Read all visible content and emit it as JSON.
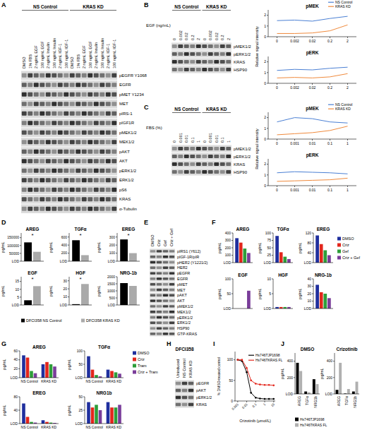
{
  "panel_labels": [
    "A",
    "B",
    "C",
    "D",
    "E",
    "F",
    "G",
    "H",
    "I",
    "J"
  ],
  "blots": [
    {
      "groups": [
        "NS Control",
        "KRAS KD"
      ],
      "lanes": [
        "DMSO",
        "1% FBS",
        "2 ng/mL EGF",
        "100 ng/mL EGF",
        "2 ng/mL Insulin",
        "100 ng/mL Insulin",
        "2 ng/mL IGF-1",
        "100 ng/mL IGF-1"
      ],
      "rows": [
        "pEGFR Y1068",
        "EGFR",
        "pMET Y1234",
        "MET",
        "pIRS-1",
        "pIGF1R",
        "pMEK1/2",
        "MEK1/2",
        "pAKT",
        "AKT",
        "pERK1/2",
        "ERK1/2",
        "pS6",
        "KRAS",
        "α-Tubulin"
      ]
    },
    {
      "groups": [
        "NS Control",
        "KRAS KD"
      ],
      "lane_title": "EGF (ng/mL)",
      "lanes": [
        "0",
        "0.002",
        "0.02",
        "0.2",
        "2"
      ],
      "rows": [
        "pMEK1/2",
        "pERK1/2",
        "KRAS",
        "HSP90"
      ]
    },
    {
      "groups": [
        "NS Control",
        "KRAS KD"
      ],
      "lane_title": "FBS (%)",
      "lanes": [
        "0",
        "0.001",
        "0.01",
        "0.1",
        "1"
      ],
      "rows": [
        "pMEK1/2",
        "pERK1/2",
        "KRAS",
        "HSP90"
      ]
    },
    {
      "lanes": [
        "DMSO",
        "Criz",
        "Gef",
        "Criz + Gef"
      ],
      "rows": [
        "pIRS1 (Y612)",
        "pIGF-1R/pIR",
        "pHER2 (Y1221/2)",
        "HER2",
        "pEGFR",
        "EGFR",
        "pMET",
        "MET",
        "pAKT",
        "AKT",
        "pMEK1/2",
        "MEK1/2",
        "pERK1/2",
        "ERK1/2",
        "HSP90",
        "GTP-KRAS"
      ]
    },
    {
      "title": "DFCI358",
      "lanes": [
        "Uninduced",
        "NS Control",
        "KRAS KD"
      ],
      "rows": [
        "pEGFR",
        "pAKT",
        "pERK1/2",
        "KRAS"
      ]
    }
  ],
  "chart_data": [
    {
      "type": "line",
      "title": "pMEK",
      "ylabel": "Relative signal intensity",
      "categories": [
        "0",
        "0.002",
        "0.02",
        "0.2",
        "2"
      ],
      "series": [
        {
          "name": "NS Control",
          "color": "#4a7fd4",
          "values": [
            1.5,
            1.55,
            1.45,
            1.7,
            1.9
          ]
        },
        {
          "name": "KRAS KD",
          "color": "#f08a3c",
          "values": [
            0.3,
            0.3,
            0.35,
            0.55,
            1.1
          ]
        }
      ],
      "ylim": [
        0,
        2.5
      ],
      "yticks": [
        0,
        1,
        2
      ],
      "legend": "top-right"
    },
    {
      "type": "line",
      "title": "pERK",
      "categories": [
        "0",
        "0.002",
        "0.02",
        "0.2",
        "2"
      ],
      "series": [
        {
          "color": "#4a7fd4",
          "values": [
            1.2,
            1.3,
            1.25,
            1.4,
            1.5
          ]
        },
        {
          "color": "#f08a3c",
          "values": [
            0.5,
            0.55,
            0.5,
            0.6,
            0.9
          ]
        }
      ],
      "ylim": [
        0,
        2.5
      ],
      "yticks": [
        0,
        1,
        2
      ]
    },
    {
      "type": "line",
      "title": "pMEK",
      "ylabel": "Relative signal intensity",
      "categories": [
        "0",
        "0.001",
        "0.01",
        "0.1",
        "1"
      ],
      "series": [
        {
          "name": "NS Control",
          "color": "#4a7fd4",
          "values": [
            1.6,
            2.0,
            1.9,
            1.6,
            1.5
          ]
        },
        {
          "name": "KRAS KD",
          "color": "#f08a3c",
          "values": [
            0.4,
            0.5,
            0.6,
            0.8,
            1.2
          ]
        }
      ],
      "ylim": [
        0,
        2.5
      ],
      "yticks": [
        0,
        1,
        2
      ],
      "legend": "top-right"
    },
    {
      "type": "line",
      "title": "pERK",
      "categories": [
        "0",
        "0.001",
        "0.01",
        "0.1",
        "1"
      ],
      "series": [
        {
          "color": "#4a7fd4",
          "values": [
            1.2,
            1.3,
            1.25,
            1.2,
            1.1
          ]
        },
        {
          "color": "#f08a3c",
          "values": [
            0.4,
            0.45,
            0.5,
            0.55,
            0.7
          ]
        }
      ],
      "ylim": [
        0,
        2.5
      ],
      "yticks": [
        0,
        1,
        2
      ]
    },
    {
      "type": "bar",
      "title": "AREG",
      "ylabel": "pg/mL",
      "categories": [
        null
      ],
      "series": [
        {
          "name": "DFCI358 NS Control",
          "color": "#000000",
          "values": [
            120000
          ]
        },
        {
          "name": "DFCI358 KRAS KD",
          "color": "#aaaaaa",
          "values": [
            60000
          ]
        }
      ],
      "ylim": [
        0,
        180000
      ],
      "yticks": [
        {
          "value": 0,
          "label": "LOD"
        },
        50000,
        100000,
        150000
      ],
      "annotations": [
        "*"
      ],
      "legend": "bottom"
    },
    {
      "type": "bar",
      "title": "TGFα",
      "ylabel": "pg/mL",
      "categories": [
        null
      ],
      "series": [
        {
          "color": "#000000",
          "values": [
            520
          ]
        },
        {
          "color": "#aaaaaa",
          "values": [
            150
          ]
        }
      ],
      "ylim": [
        0,
        700
      ],
      "yticks": [
        {
          "value": 0,
          "label": "LOD"
        },
        200,
        400,
        600
      ],
      "annotations": [
        "*"
      ]
    },
    {
      "type": "bar",
      "title": "EREG",
      "ylabel": "pg/mL",
      "categories": [
        null
      ],
      "series": [
        {
          "color": "#000000",
          "values": [
            270
          ]
        },
        {
          "color": "#aaaaaa",
          "values": [
            100
          ]
        }
      ],
      "ylim": [
        0,
        350
      ],
      "yticks": [
        {
          "value": 0,
          "label": "LOD"
        },
        100,
        200,
        300
      ],
      "annotations": [
        "*"
      ]
    },
    {
      "type": "bar",
      "title": "EGF",
      "ylabel": "pg/mL",
      "categories": [
        null
      ],
      "series": [
        {
          "color": "#000000",
          "values": [
            3
          ]
        },
        {
          "color": "#aaaaaa",
          "values": [
            12
          ]
        }
      ],
      "ylim": [
        0,
        18
      ],
      "yticks": [
        {
          "value": 0,
          "label": "LOD"
        },
        5,
        10,
        15
      ],
      "annotations": [
        "*"
      ]
    },
    {
      "type": "bar",
      "title": "HGF",
      "ylabel": "pg/mL",
      "categories": [
        null
      ],
      "series": [
        {
          "color": "#000000",
          "values": [
            1
          ]
        },
        {
          "color": "#aaaaaa",
          "values": [
            26
          ]
        }
      ],
      "ylim": [
        0,
        35
      ],
      "yticks": [
        {
          "value": 0,
          "label": "LOD"
        },
        10,
        20,
        30
      ],
      "annotations": [
        "*"
      ]
    },
    {
      "type": "bar",
      "title": "NRG-1b",
      "ylabel": "pg/mL",
      "categories": [
        null
      ],
      "series": [
        {
          "color": "#000000",
          "values": [
            1550
          ]
        },
        {
          "color": "#aaaaaa",
          "values": [
            1350
          ]
        }
      ],
      "ylim": [
        0,
        2000
      ],
      "yticks": [
        {
          "value": 0,
          "label": "LOD"
        },
        500,
        1000,
        1500,
        2000
      ]
    },
    {
      "type": "bar",
      "title": "AREG",
      "ylabel": "pg/mL",
      "categories": [
        null
      ],
      "series": [
        {
          "name": "DMSO",
          "color": "#1f2f9e",
          "values": [
            330
          ]
        },
        {
          "name": "Criz",
          "color": "#e3261c",
          "values": [
            270
          ]
        },
        {
          "name": "Gef",
          "color": "#2e9e3a",
          "values": [
            190
          ]
        },
        {
          "name": "Criz + Gef",
          "color": "#7a3d9a",
          "values": [
            130
          ]
        }
      ],
      "ylim": [
        0,
        400
      ],
      "yticks": [
        {
          "value": 0,
          "label": "LOD"
        },
        100,
        200,
        300,
        400
      ],
      "legend": "right"
    },
    {
      "type": "bar",
      "title": "TGFα",
      "ylabel": "pg/mL",
      "categories": [
        null
      ],
      "series": [
        {
          "color": "#1f2f9e",
          "values": [
            90
          ]
        },
        {
          "color": "#e3261c",
          "values": [
            35
          ]
        },
        {
          "color": "#2e9e3a",
          "values": [
            20
          ]
        },
        {
          "color": "#7a3d9a",
          "values": [
            12
          ]
        }
      ],
      "ylim": [
        0,
        100
      ],
      "yticks": [
        {
          "value": 0,
          "label": "LOD"
        },
        25,
        50,
        75,
        100
      ]
    },
    {
      "type": "bar",
      "title": "EREG",
      "ylabel": "pg/mL",
      "categories": [
        null
      ],
      "series": [
        {
          "color": "#1f2f9e",
          "values": [
            110
          ]
        },
        {
          "color": "#e3261c",
          "values": [
            75
          ]
        },
        {
          "color": "#2e9e3a",
          "values": [
            50
          ]
        },
        {
          "color": "#7a3d9a",
          "values": [
            30
          ]
        }
      ],
      "ylim": [
        0,
        120
      ],
      "yticks": [
        {
          "value": 0,
          "label": "LOD"
        },
        40,
        80,
        120
      ]
    },
    {
      "type": "bar",
      "title": "EGF",
      "ylabel": "pg/mL",
      "categories": [
        null
      ],
      "series": [
        {
          "color": "#1f2f9e",
          "values": [
            0
          ]
        },
        {
          "color": "#e3261c",
          "values": [
            0
          ]
        },
        {
          "color": "#2e9e3a",
          "values": [
            0
          ]
        },
        {
          "color": "#7a3d9a",
          "values": [
            60
          ]
        }
      ],
      "ylim": [
        0,
        100
      ],
      "yticks": [
        {
          "value": 0,
          "label": "LOD"
        },
        50,
        100
      ]
    },
    {
      "type": "bar",
      "title": "HGF",
      "ylabel": "pg/mL",
      "categories": [
        null
      ],
      "series": [
        {
          "color": "#1f2f9e",
          "values": [
            0.5
          ]
        },
        {
          "color": "#e3261c",
          "values": [
            0.5
          ]
        },
        {
          "color": "#2e9e3a",
          "values": [
            0.5
          ]
        },
        {
          "color": "#7a3d9a",
          "values": [
            0.5
          ]
        }
      ],
      "ylim": [
        0,
        10
      ],
      "yticks": [
        {
          "value": 0,
          "label": "LOD"
        },
        5,
        10
      ]
    },
    {
      "type": "bar",
      "title": "NRG-1b",
      "ylabel": "pg/mL",
      "categories": [
        null
      ],
      "series": [
        {
          "color": "#1f2f9e",
          "values": [
            32
          ]
        },
        {
          "color": "#e3261c",
          "values": [
            22
          ]
        },
        {
          "color": "#2e9e3a",
          "values": [
            20
          ]
        },
        {
          "color": "#7a3d9a",
          "values": [
            14
          ]
        }
      ],
      "ylim": [
        0,
        40
      ],
      "yticks": [
        {
          "value": 0,
          "label": "LOD"
        },
        10,
        20,
        30,
        40
      ]
    },
    {
      "type": "bar",
      "title": "AREG",
      "ylabel": "pg/mL",
      "categories": [
        "NS Control",
        "KRAS KD"
      ],
      "series": [
        {
          "name": "DMSO",
          "color": "#1f2f9e",
          "values": [
            50,
            30
          ]
        },
        {
          "name": "Criz",
          "color": "#e3261c",
          "values": [
            45,
            35
          ]
        },
        {
          "name": "Tram",
          "color": "#2e9e3a",
          "values": [
            15,
            30
          ]
        },
        {
          "name": "Criz + Tram",
          "color": "#7a3d9a",
          "values": [
            10,
            25
          ]
        }
      ],
      "ylim": [
        0,
        60
      ],
      "yticks": [
        {
          "value": 0,
          "label": "LOD"
        },
        20,
        40,
        60
      ],
      "legend": "right"
    },
    {
      "type": "bar",
      "title": "TGFα",
      "ylabel": "pg/mL",
      "categories": [
        "NS Control",
        "KRAS KD"
      ],
      "series": [
        {
          "color": "#1f2f9e",
          "values": [
            80,
            30
          ]
        },
        {
          "color": "#e3261c",
          "values": [
            30,
            25
          ]
        },
        {
          "color": "#2e9e3a",
          "values": [
            10,
            20
          ]
        },
        {
          "color": "#7a3d9a",
          "values": [
            5,
            15
          ]
        }
      ],
      "ylim": [
        0,
        100
      ],
      "yticks": [
        {
          "value": 0,
          "label": "LOD"
        },
        50,
        100
      ]
    },
    {
      "type": "bar",
      "title": "EREG",
      "ylabel": "pg/mL",
      "categories": [
        "NS Control",
        "KRAS KD"
      ],
      "series": [
        {
          "color": "#1f2f9e",
          "values": [
            60,
            10
          ]
        },
        {
          "color": "#e3261c",
          "values": [
            20,
            5
          ]
        },
        {
          "color": "#2e9e3a",
          "values": [
            5,
            3
          ]
        },
        {
          "color": "#7a3d9a",
          "values": [
            3,
            2
          ]
        }
      ],
      "ylim": [
        0,
        80
      ],
      "yticks": [
        {
          "value": 0,
          "label": "LOD"
        },
        40,
        80
      ]
    },
    {
      "type": "bar",
      "title": "NRG1b",
      "ylabel": "pg/mL",
      "categories": [
        "NS Control",
        "KRAS KD"
      ],
      "series": [
        {
          "color": "#1f2f9e",
          "values": [
            40,
            40
          ]
        },
        {
          "color": "#e3261c",
          "values": [
            30,
            30
          ]
        },
        {
          "color": "#2e9e3a",
          "values": [
            35,
            30
          ]
        },
        {
          "color": "#7a3d9a",
          "values": [
            25,
            35
          ]
        }
      ],
      "ylim": [
        0,
        50
      ],
      "yticks": [
        {
          "value": 0,
          "label": "LOD"
        },
        25,
        50
      ]
    },
    {
      "type": "line",
      "log": "x",
      "xlabel": "Crizotinib (μmol/L)",
      "ylabel": "% DMSO-treated control",
      "x": [
        0.001,
        0.003,
        0.01,
        0.03,
        0.1,
        0.3,
        1,
        3,
        10
      ],
      "xlim": [
        0.0005,
        15
      ],
      "xticks": [
        0.001,
        0.01,
        0.1,
        1,
        10
      ],
      "ylim": [
        0,
        120
      ],
      "yticks": [
        0,
        50,
        100
      ],
      "legend": "top-right",
      "series": [
        {
          "name": "Hs746TJP1698",
          "color": "#000000",
          "marker": "circle",
          "values": [
            100,
            97,
            70,
            20,
            8,
            6,
            5,
            5,
            5
          ]
        },
        {
          "name": "Hs746TKRAS FL",
          "color": "#e3261c",
          "marker": "circle",
          "values": [
            100,
            100,
            80,
            50,
            42,
            40,
            39,
            39,
            38
          ]
        }
      ]
    },
    {
      "type": "bar",
      "title": "DMSO",
      "ylabel": "pg/mL",
      "categories": [
        "AREG",
        "TGFα",
        "NRG1b"
      ],
      "series": [
        {
          "name": "Hs746TJP1698",
          "color": "#000000",
          "values": [
            380,
            30,
            180
          ]
        },
        {
          "name": "Hs746TKRAS FL",
          "color": "#b0b0b0",
          "values": [
            280,
            20,
            120
          ]
        }
      ],
      "ylim": [
        0,
        500
      ],
      "yticks": [
        {
          "value": 0,
          "label": "LOD"
        },
        200,
        400
      ],
      "legend": "bottom"
    },
    {
      "type": "bar",
      "title": "Crizotinib",
      "ylabel": "pg/mL",
      "categories": [
        "AREG",
        "TGFα",
        "NRG1b"
      ],
      "series": [
        {
          "color": "#000000",
          "values": [
            50,
            5,
            30
          ]
        },
        {
          "color": "#b0b0b0",
          "values": [
            380,
            60,
            150
          ]
        }
      ],
      "ylim": [
        0,
        500
      ],
      "yticks": [
        {
          "value": 0,
          "label": "LOD"
        },
        200,
        400
      ]
    }
  ]
}
